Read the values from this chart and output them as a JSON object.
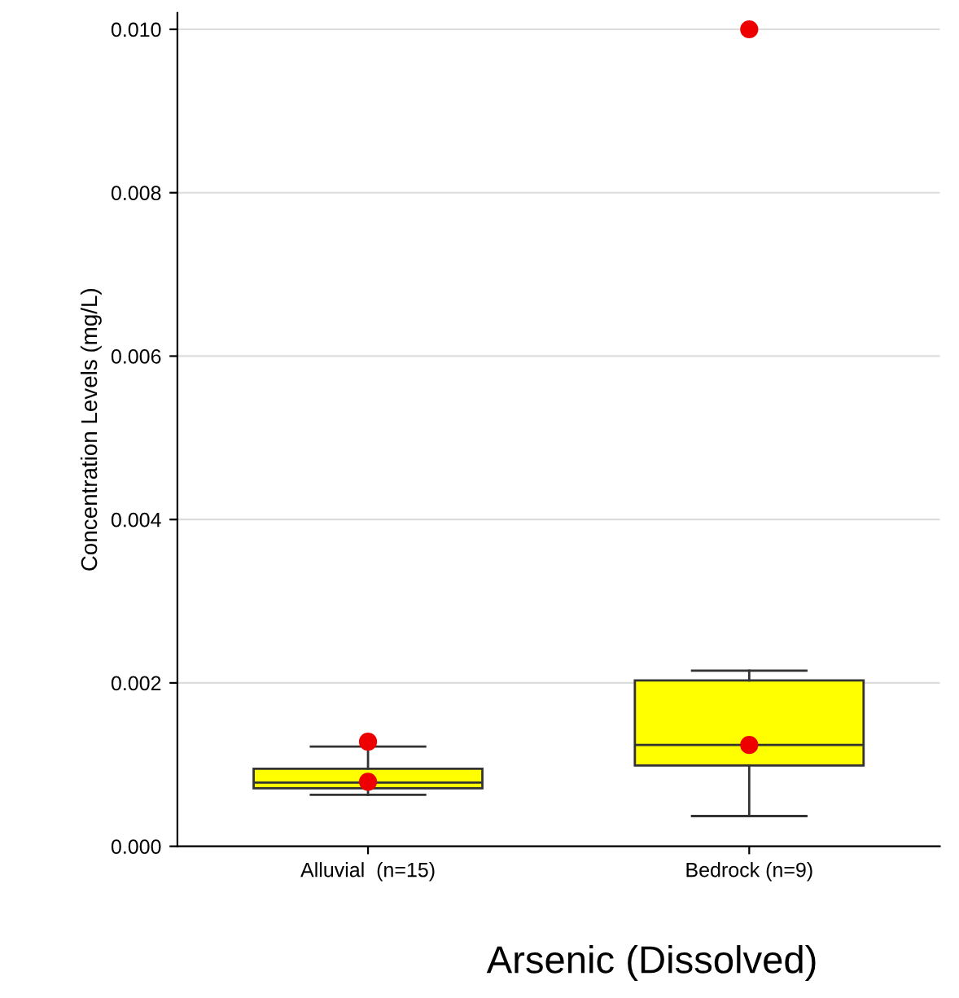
{
  "chart_data": {
    "type": "box",
    "title": "Arsenic (Dissolved)",
    "ylabel": "Concentration Levels (mg/L)",
    "categories": [
      "Alluvial  (n=15)",
      "Bedrock (n=9)"
    ],
    "boxes": [
      {
        "low": 0.00063,
        "q1": 0.00071,
        "median": 0.00078,
        "q3": 0.00095,
        "high": 0.00122,
        "mean": 0.00079,
        "outliers": [
          0.00128
        ]
      },
      {
        "low": 0.00037,
        "q1": 0.00099,
        "median": 0.00124,
        "q3": 0.00203,
        "high": 0.00215,
        "mean": 0.00124,
        "outliers": [
          0.01
        ]
      }
    ],
    "color": "#ffff00",
    "ylim": [
      0,
      0.0102
    ],
    "yticks": [
      {
        "value": 0,
        "label": "0.000"
      },
      {
        "value": 0.002,
        "label": "0.002"
      },
      {
        "value": 0.004,
        "label": "0.004"
      },
      {
        "value": 0.006,
        "label": "0.006"
      },
      {
        "value": 0.008,
        "label": "0.008"
      },
      {
        "value": 0.01,
        "label": "0.010"
      }
    ],
    "grid": "y",
    "legend": false
  }
}
